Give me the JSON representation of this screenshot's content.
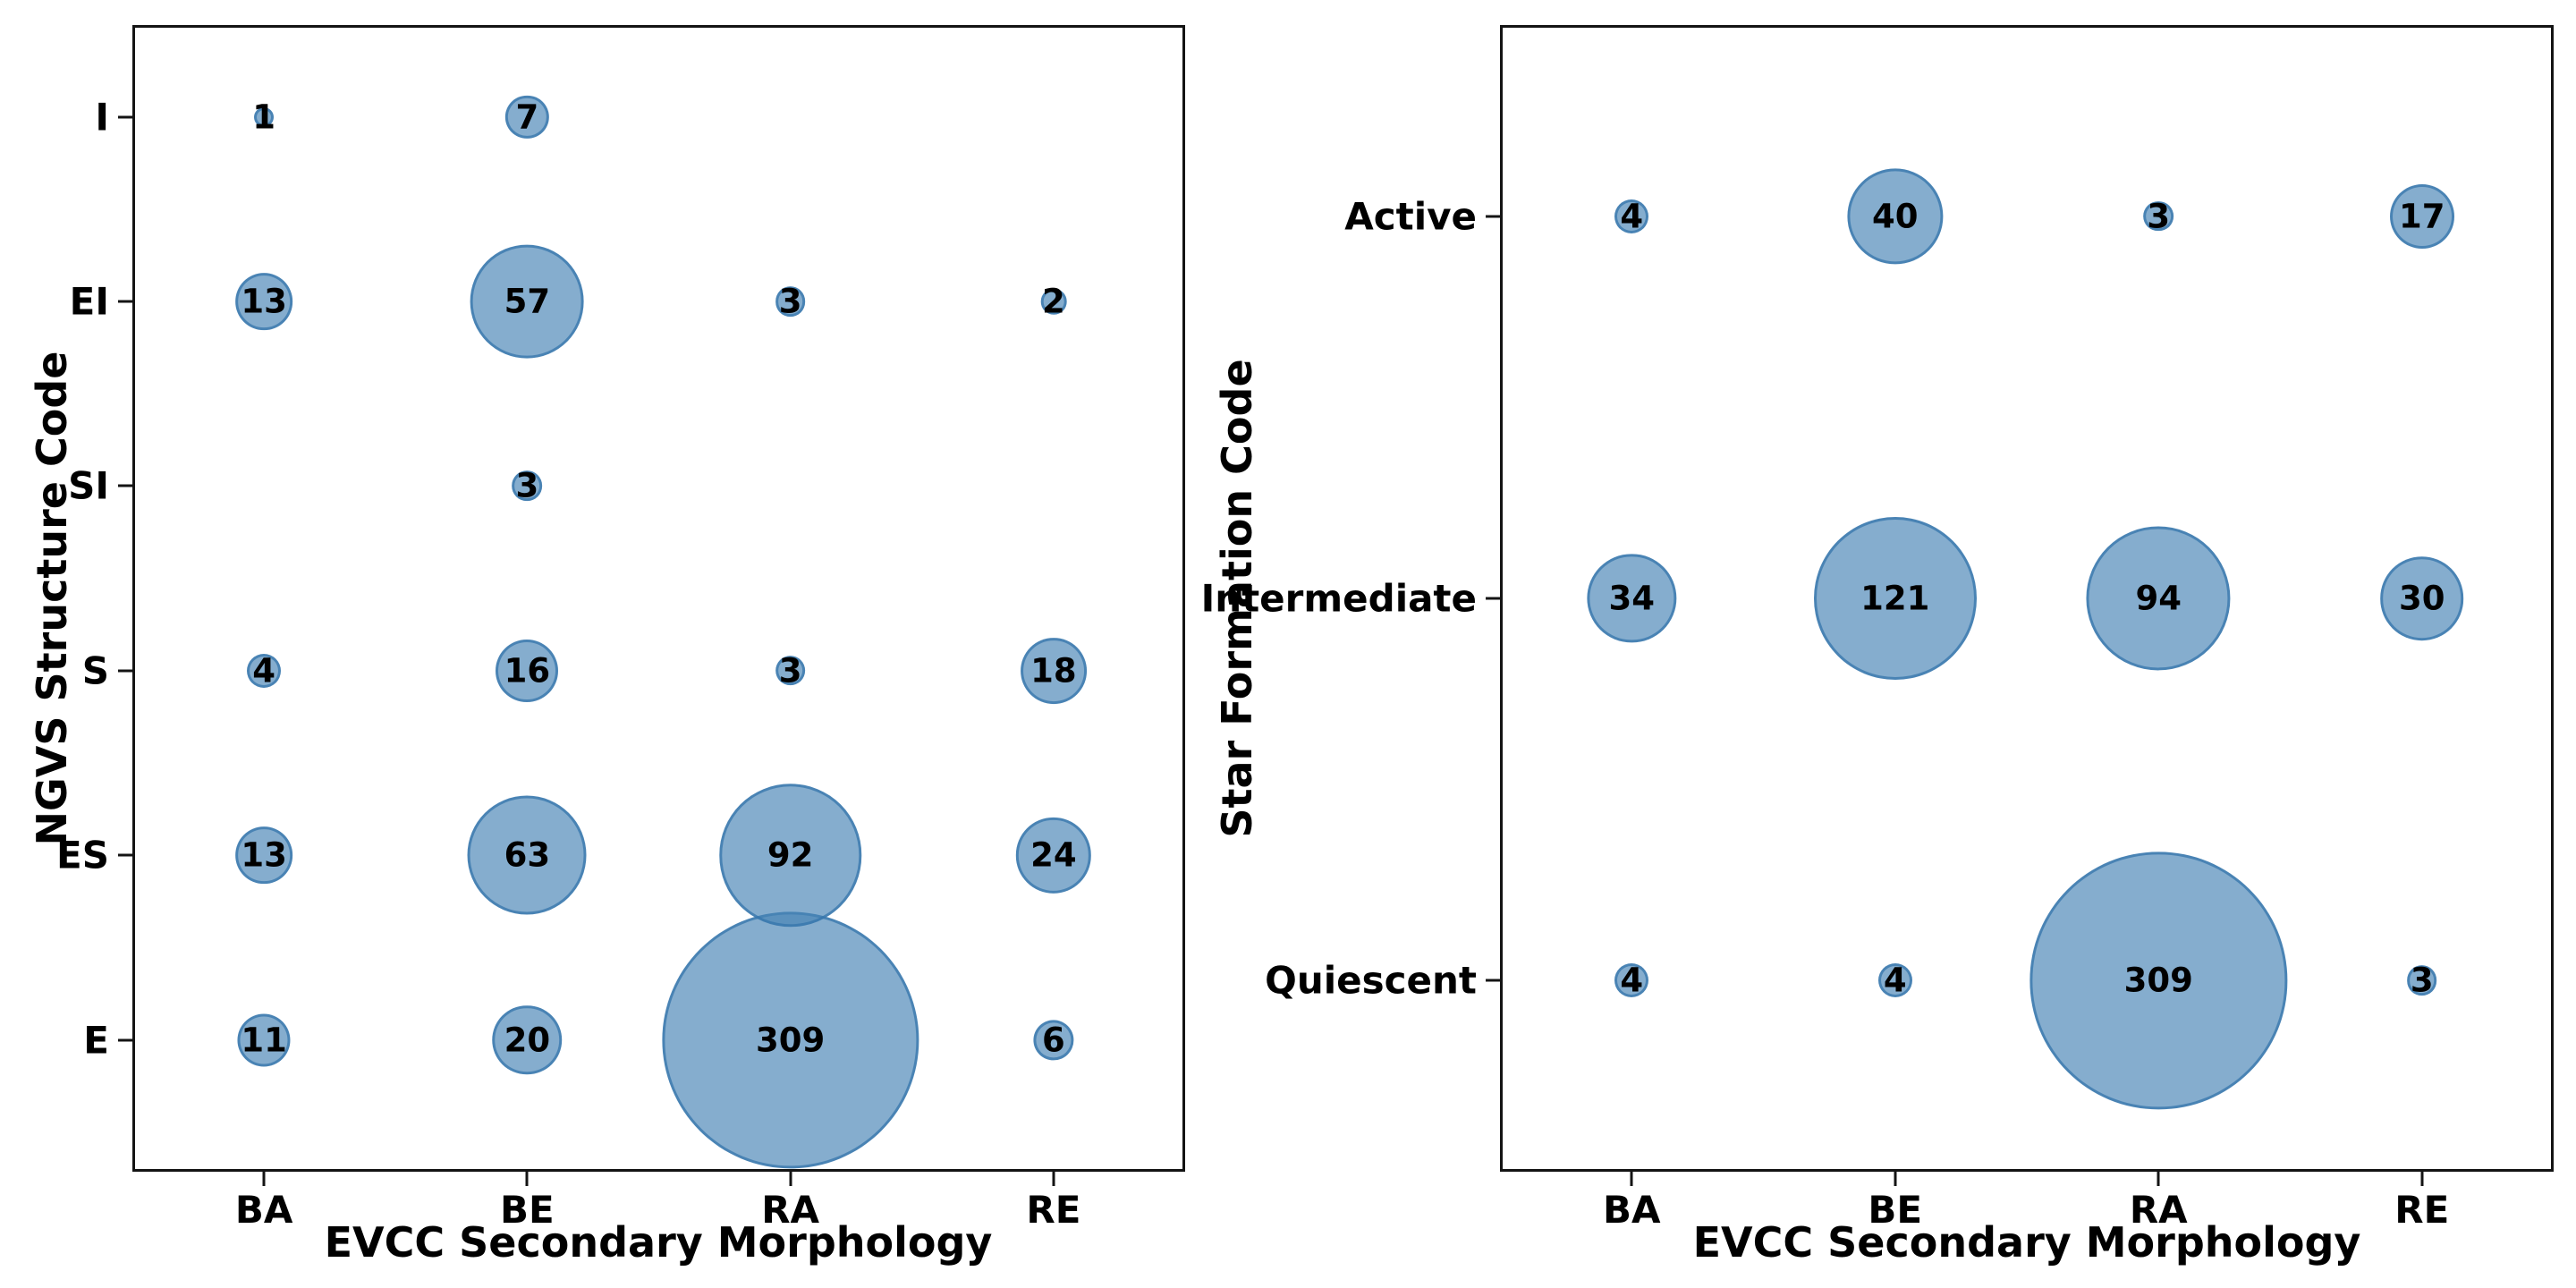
{
  "style": {
    "background": "#ffffff",
    "bubble_fill": "#7FABD0",
    "bubble_edge": "#5B94C6",
    "text_color": "#000000"
  },
  "chart_data": [
    {
      "type": "scatter",
      "variant": "bubble",
      "title": "",
      "xlabel": "EVCC Secondary Morphology",
      "ylabel": "NGVS Structure Code",
      "x_categories": [
        "BA",
        "BE",
        "RA",
        "RE"
      ],
      "y_categories": [
        "I",
        "EI",
        "SI",
        "S",
        "ES",
        "E"
      ],
      "size_encoding": "bubble radius proportional to sqrt of count",
      "grid": false,
      "legend": "none",
      "points": [
        {
          "x": "BA",
          "y": "I",
          "value": 1
        },
        {
          "x": "BE",
          "y": "I",
          "value": 7
        },
        {
          "x": "BA",
          "y": "EI",
          "value": 13
        },
        {
          "x": "BE",
          "y": "EI",
          "value": 57
        },
        {
          "x": "RA",
          "y": "EI",
          "value": 3
        },
        {
          "x": "RE",
          "y": "EI",
          "value": 2
        },
        {
          "x": "BE",
          "y": "SI",
          "value": 3
        },
        {
          "x": "BA",
          "y": "S",
          "value": 4
        },
        {
          "x": "BE",
          "y": "S",
          "value": 16
        },
        {
          "x": "RA",
          "y": "S",
          "value": 3
        },
        {
          "x": "RE",
          "y": "S",
          "value": 18
        },
        {
          "x": "BA",
          "y": "ES",
          "value": 13
        },
        {
          "x": "BE",
          "y": "ES",
          "value": 63
        },
        {
          "x": "RA",
          "y": "ES",
          "value": 92
        },
        {
          "x": "RE",
          "y": "ES",
          "value": 24
        },
        {
          "x": "BA",
          "y": "E",
          "value": 11
        },
        {
          "x": "BE",
          "y": "E",
          "value": 20
        },
        {
          "x": "RA",
          "y": "E",
          "value": 309
        },
        {
          "x": "RE",
          "y": "E",
          "value": 6
        }
      ]
    },
    {
      "type": "scatter",
      "variant": "bubble",
      "title": "",
      "xlabel": "EVCC Secondary Morphology",
      "ylabel": "Star Formation Code",
      "x_categories": [
        "BA",
        "BE",
        "RA",
        "RE"
      ],
      "y_categories": [
        "Active",
        "Intermediate",
        "Quiescent"
      ],
      "size_encoding": "bubble radius proportional to sqrt of count",
      "grid": false,
      "legend": "none",
      "points": [
        {
          "x": "BA",
          "y": "Active",
          "value": 4
        },
        {
          "x": "BE",
          "y": "Active",
          "value": 40
        },
        {
          "x": "RA",
          "y": "Active",
          "value": 3
        },
        {
          "x": "RE",
          "y": "Active",
          "value": 17
        },
        {
          "x": "BA",
          "y": "Intermediate",
          "value": 34
        },
        {
          "x": "BE",
          "y": "Intermediate",
          "value": 121
        },
        {
          "x": "RA",
          "y": "Intermediate",
          "value": 94
        },
        {
          "x": "RE",
          "y": "Intermediate",
          "value": 30
        },
        {
          "x": "BA",
          "y": "Quiescent",
          "value": 4
        },
        {
          "x": "BE",
          "y": "Quiescent",
          "value": 4
        },
        {
          "x": "RA",
          "y": "Quiescent",
          "value": 309
        },
        {
          "x": "RE",
          "y": "Quiescent",
          "value": 3
        }
      ]
    }
  ]
}
